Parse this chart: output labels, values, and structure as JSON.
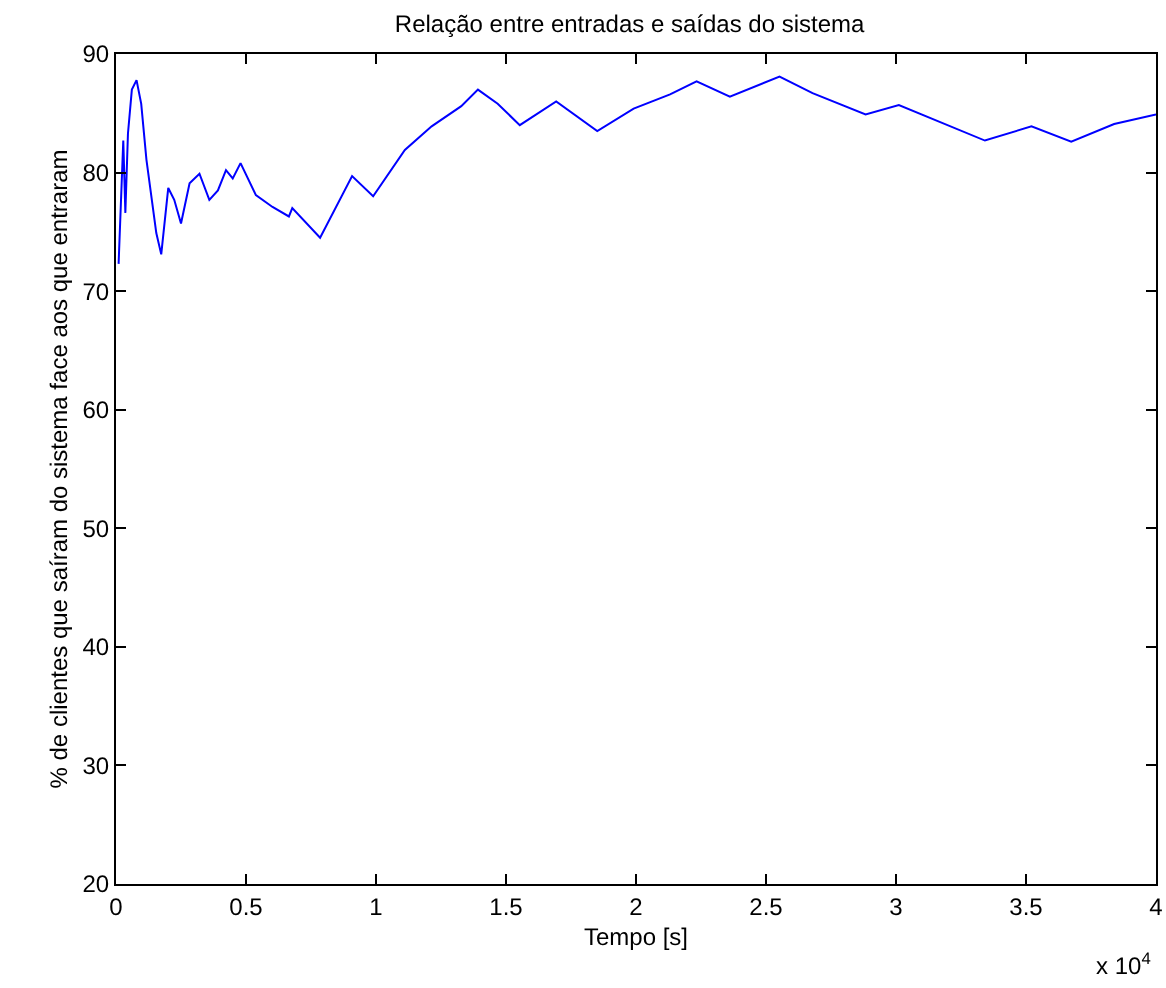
{
  "chart_data": {
    "type": "line",
    "title": "Relação entre entradas e saídas do sistema",
    "xlabel": "Tempo [s]",
    "ylabel": "% de clientes que saíram do sistema face aos que entraram",
    "annotations": [
      "x 10$^{4}$"
    ],
    "x": [
      0.01,
      0.028,
      0.036,
      0.046,
      0.061,
      0.079,
      0.097,
      0.117,
      0.155,
      0.174,
      0.201,
      0.224,
      0.25,
      0.283,
      0.321,
      0.359,
      0.392,
      0.423,
      0.449,
      0.479,
      0.538,
      0.602,
      0.665,
      0.678,
      0.785,
      0.908,
      0.989,
      1.111,
      1.214,
      1.328,
      1.392,
      1.468,
      1.553,
      1.693,
      1.851,
      1.991,
      2.131,
      2.233,
      2.361,
      2.552,
      2.679,
      2.883,
      3.011,
      3.342,
      3.521,
      3.674,
      3.839,
      4.0
    ],
    "series": [
      {
        "color": "#0000ff",
        "values": [
          72.3,
          82.7,
          76.6,
          83.3,
          87.0,
          87.8,
          85.8,
          81.1,
          74.9,
          73.1,
          78.7,
          77.7,
          75.7,
          79.1,
          79.9,
          77.7,
          78.5,
          80.2,
          79.5,
          80.8,
          78.1,
          77.1,
          76.3,
          77.0,
          74.5,
          79.7,
          78.0,
          81.9,
          83.9,
          85.6,
          87.0,
          85.8,
          84.0,
          86.0,
          83.5,
          85.4,
          86.6,
          87.7,
          86.4,
          88.1,
          86.7,
          84.9,
          85.7,
          82.7,
          83.9,
          82.6,
          84.1,
          84.9
        ]
      }
    ],
    "xlim": [
      0,
      4
    ],
    "xticks": [
      0,
      0.5,
      1,
      1.5,
      2,
      2.5,
      3,
      3.5,
      4
    ],
    "ylim": [
      20,
      90
    ],
    "yticks": [
      20,
      30,
      40,
      50,
      60,
      70,
      80,
      90
    ],
    "grid": false,
    "marker": "none",
    "line_style": "solid"
  }
}
